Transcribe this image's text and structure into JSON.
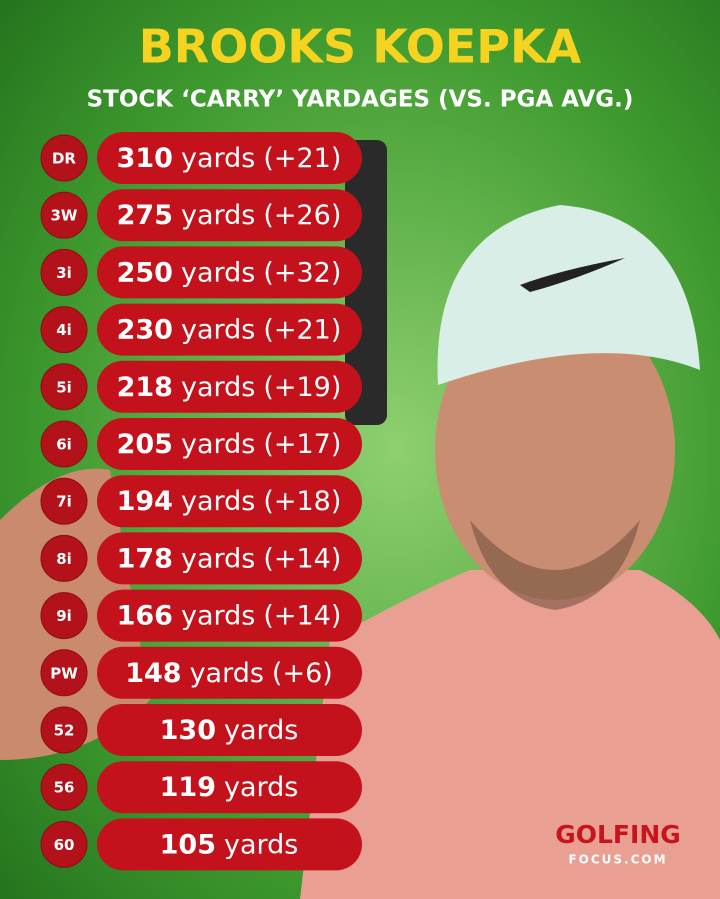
{
  "header": {
    "title": "BROOKS KOEPKA",
    "subtitle": "STOCK ‘CARRY’ YARDAGES (VS. PGA AVG.)"
  },
  "rows": [
    {
      "club": "DR",
      "carry": 310,
      "unit": "yards",
      "vs_avg": "(+21)"
    },
    {
      "club": "3W",
      "carry": 275,
      "unit": "yards",
      "vs_avg": "(+26)"
    },
    {
      "club": "3i",
      "carry": 250,
      "unit": "yards",
      "vs_avg": "(+32)"
    },
    {
      "club": "4i",
      "carry": 230,
      "unit": "yards",
      "vs_avg": "(+21)"
    },
    {
      "club": "5i",
      "carry": 218,
      "unit": "yards",
      "vs_avg": "(+19)"
    },
    {
      "club": "6i",
      "carry": 205,
      "unit": "yards",
      "vs_avg": "(+17)"
    },
    {
      "club": "7i",
      "carry": 194,
      "unit": "yards",
      "vs_avg": "(+18)"
    },
    {
      "club": "8i",
      "carry": 178,
      "unit": "yards",
      "vs_avg": "(+14)"
    },
    {
      "club": "9i",
      "carry": 166,
      "unit": "yards",
      "vs_avg": "(+14)"
    },
    {
      "club": "PW",
      "carry": 148,
      "unit": "yards",
      "vs_avg": "(+6)"
    },
    {
      "club": "52",
      "carry": 130,
      "unit": "yards"
    },
    {
      "club": "56",
      "carry": 119,
      "unit": "yards"
    },
    {
      "club": "60",
      "carry": 105,
      "unit": "yards"
    }
  ],
  "logo": {
    "name": "GOLFING",
    "sub": "FOCUS.COM"
  }
}
